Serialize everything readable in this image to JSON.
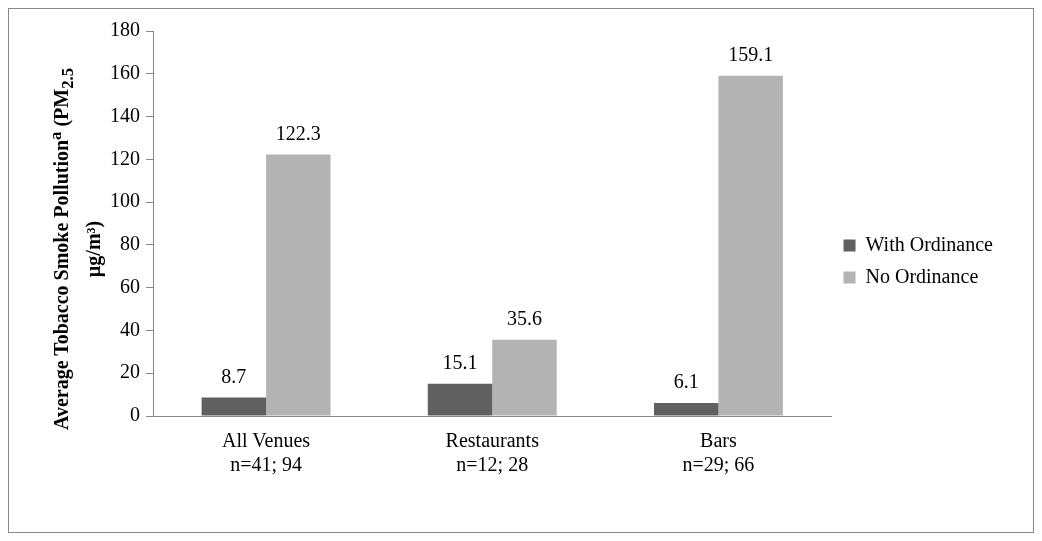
{
  "chart_data": {
    "type": "bar",
    "ylabel": "Average Tobacco Smoke Pollution$^{a}$ (PM$_{2.5}$ µg/m³)",
    "categories": [
      "All Venues\nn=41; 94",
      "Restaurants\nn=12; 28",
      "Bars\nn=29; 66"
    ],
    "series": [
      {
        "name": "With Ordinance",
        "color": "#606060",
        "values": [
          8.7,
          15.1,
          6.1
        ]
      },
      {
        "name": "No Ordinance",
        "color": "#b3b3b3",
        "values": [
          122.3,
          35.6,
          159.1
        ]
      }
    ],
    "ylim": [
      0,
      180
    ],
    "yticks": [
      0,
      20,
      40,
      60,
      80,
      100,
      120,
      140,
      160,
      180
    ],
    "grid": false,
    "legend": "right",
    "data_labels": true
  }
}
